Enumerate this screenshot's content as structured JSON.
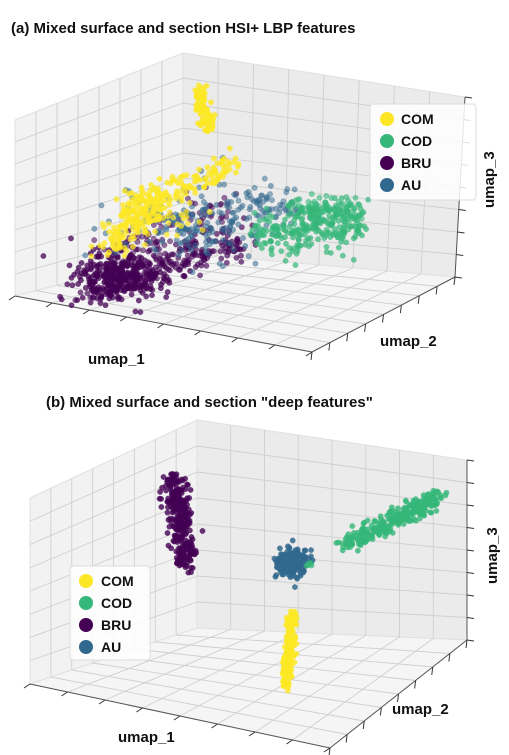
{
  "chart_data": [
    {
      "type": "scatter",
      "subtype": "3d-scatter",
      "title": "(a) Mixed surface and section HSI+ LBP features",
      "xlabel": "umap_1",
      "ylabel": "umap_2",
      "zlabel": "umap_3",
      "grid": true,
      "legend_position": "top-right",
      "series": [
        {
          "name": "COM",
          "color": "#fde725",
          "cluster_shape": "elongated vertical streak at top plus band along upper ridge of the mass"
        },
        {
          "name": "COD",
          "color": "#35b779",
          "cluster_shape": "broad band on the right side"
        },
        {
          "name": "BRU",
          "color": "#440154",
          "cluster_shape": "dense lobe at lower left"
        },
        {
          "name": "AU",
          "color": "#31688e",
          "cluster_shape": "mixed across the central mass"
        }
      ]
    },
    {
      "type": "scatter",
      "subtype": "3d-scatter",
      "title": "(b) Mixed surface and section \"deep features\"",
      "xlabel": "umap_1",
      "ylabel": "umap_2",
      "zlabel": "umap_3",
      "grid": true,
      "legend_position": "center-left",
      "series": [
        {
          "name": "COM",
          "color": "#fde725",
          "cluster_shape": "narrow vertical cluster at bottom center"
        },
        {
          "name": "COD",
          "color": "#35b779",
          "cluster_shape": "long diagonal cluster at right"
        },
        {
          "name": "BRU",
          "color": "#440154",
          "cluster_shape": "vertical elongated cluster at left"
        },
        {
          "name": "AU",
          "color": "#31688e",
          "cluster_shape": "compact blob at center"
        }
      ]
    }
  ]
}
